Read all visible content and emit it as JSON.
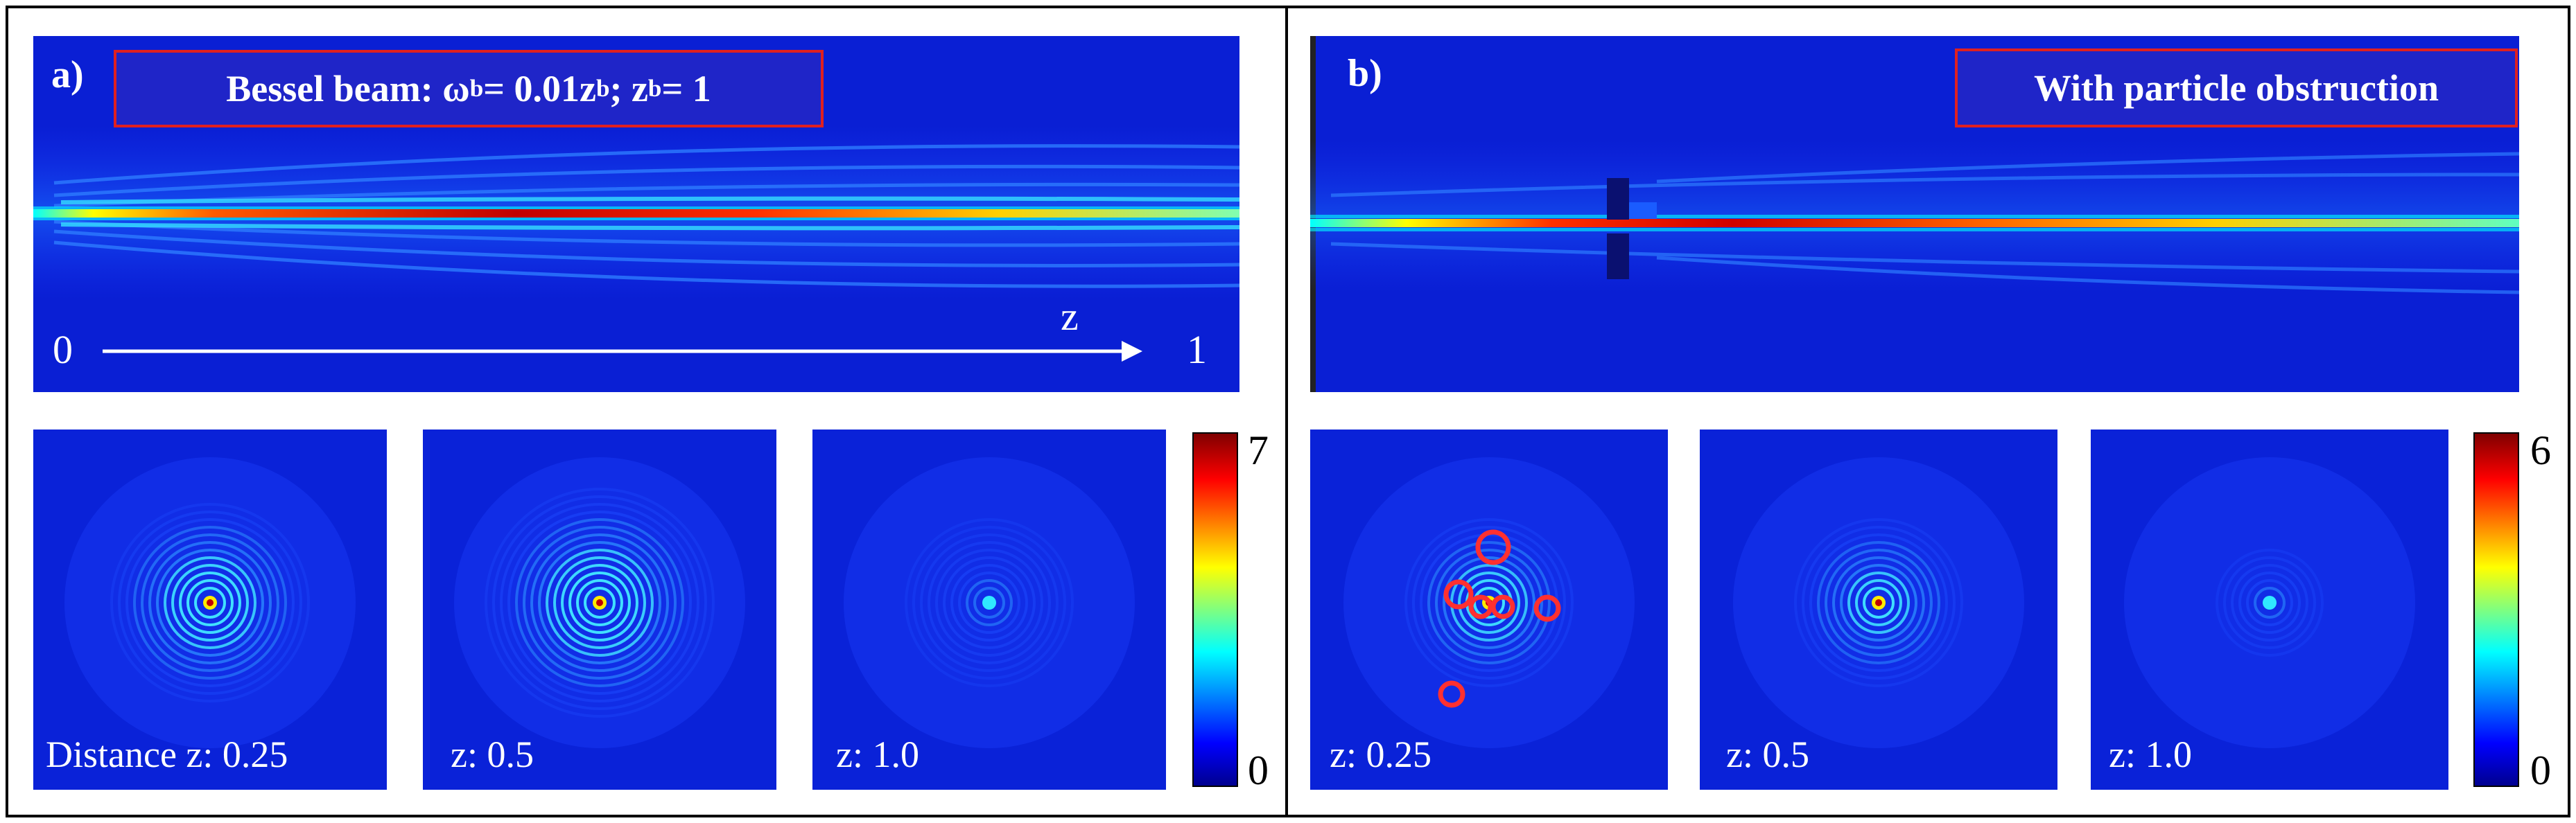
{
  "panel_a": {
    "label": "a)",
    "title_parts": [
      "Bessel beam: ω",
      "b",
      " = 0.01z",
      "b",
      " ; z",
      "b",
      " = 1"
    ],
    "axis": {
      "start": "0",
      "end": "1",
      "var": "z"
    },
    "cross_sections": [
      {
        "caption": "Distance z: 0.25",
        "peak": 1.0,
        "rings": 12
      },
      {
        "caption": "z: 0.5",
        "peak": 1.0,
        "rings": 14
      },
      {
        "caption": "z: 1.0",
        "peak": 0.45,
        "rings": 10
      }
    ],
    "colorbar": {
      "max": "7",
      "min": "0"
    }
  },
  "panel_b": {
    "label": "b)",
    "title": "With particle obstruction",
    "cross_sections": [
      {
        "caption": "z: 0.25",
        "peak": 0.9,
        "rings": 10,
        "particles": 5
      },
      {
        "caption": "z: 0.5",
        "peak": 0.85,
        "rings": 10,
        "particles": 0
      },
      {
        "caption": "z: 1.0",
        "peak": 0.45,
        "rings": 6,
        "particles": 0
      }
    ],
    "colorbar": {
      "max": "6",
      "min": "0"
    }
  },
  "colormap": [
    "#00008f",
    "#0000ff",
    "#00ffff",
    "#ffff00",
    "#ff0000",
    "#800000"
  ]
}
